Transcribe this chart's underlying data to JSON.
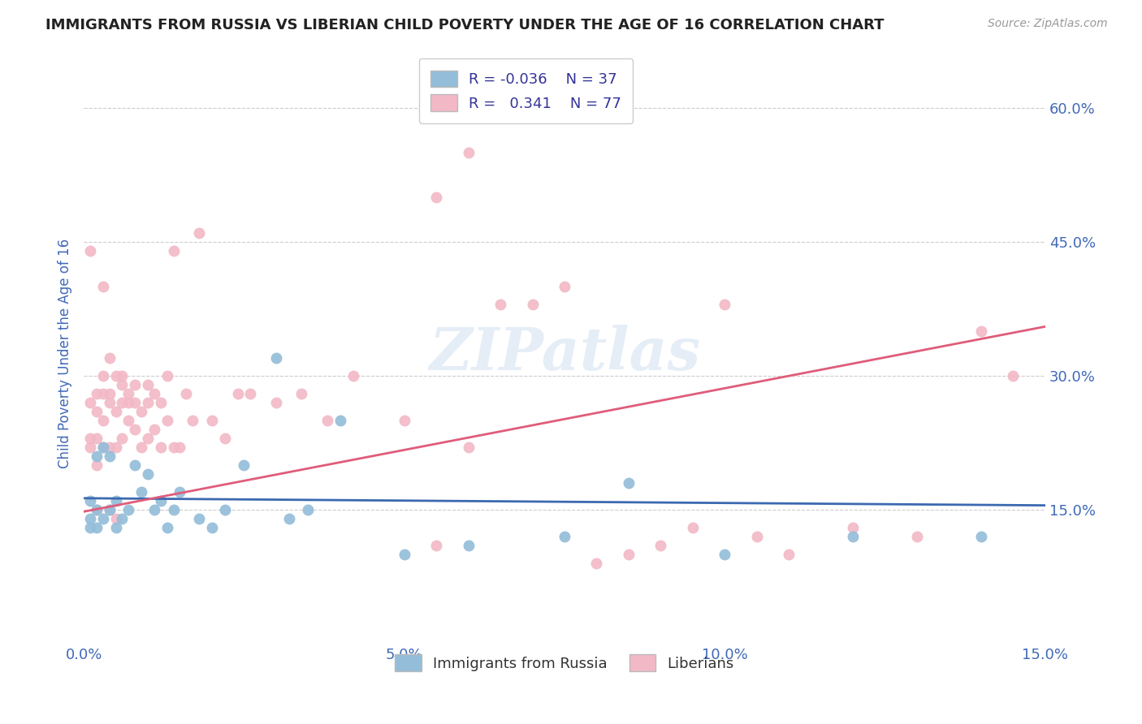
{
  "title": "IMMIGRANTS FROM RUSSIA VS LIBERIAN CHILD POVERTY UNDER THE AGE OF 16 CORRELATION CHART",
  "source": "Source: ZipAtlas.com",
  "ylabel": "Child Poverty Under the Age of 16",
  "xlim": [
    0.0,
    0.15
  ],
  "ylim": [
    0.0,
    0.65
  ],
  "yticks": [
    0.15,
    0.3,
    0.45,
    0.6
  ],
  "xticks": [
    0.0,
    0.05,
    0.1,
    0.15
  ],
  "xtick_labels": [
    "0.0%",
    "5.0%",
    "10.0%",
    "15.0%"
  ],
  "ytick_labels": [
    "15.0%",
    "30.0%",
    "45.0%",
    "60.0%"
  ],
  "blue_color": "#93BDD9",
  "pink_color": "#F2B8C6",
  "blue_line_color": "#3B69B0",
  "pink_line_color": "#E05C7A",
  "legend_blue_label": "Immigrants from Russia",
  "legend_pink_label": "Liberians",
  "R_blue": -0.036,
  "N_blue": 37,
  "R_pink": 0.341,
  "N_pink": 77,
  "watermark": "ZIPatlas",
  "title_color": "#222222",
  "axis_label_color": "#4169B8",
  "tick_color": "#4169B8",
  "blue_scatter_x": [
    0.001,
    0.001,
    0.001,
    0.002,
    0.002,
    0.002,
    0.003,
    0.003,
    0.004,
    0.004,
    0.005,
    0.005,
    0.006,
    0.007,
    0.008,
    0.009,
    0.01,
    0.011,
    0.012,
    0.013,
    0.014,
    0.015,
    0.018,
    0.02,
    0.022,
    0.025,
    0.03,
    0.032,
    0.035,
    0.04,
    0.05,
    0.06,
    0.075,
    0.085,
    0.1,
    0.12,
    0.14
  ],
  "blue_scatter_y": [
    0.13,
    0.14,
    0.16,
    0.13,
    0.15,
    0.21,
    0.14,
    0.22,
    0.15,
    0.21,
    0.13,
    0.16,
    0.14,
    0.15,
    0.2,
    0.17,
    0.19,
    0.15,
    0.16,
    0.13,
    0.15,
    0.17,
    0.14,
    0.13,
    0.15,
    0.2,
    0.32,
    0.14,
    0.15,
    0.25,
    0.1,
    0.11,
    0.12,
    0.18,
    0.1,
    0.12,
    0.12
  ],
  "pink_scatter_x": [
    0.001,
    0.001,
    0.001,
    0.001,
    0.002,
    0.002,
    0.002,
    0.002,
    0.002,
    0.003,
    0.003,
    0.003,
    0.003,
    0.003,
    0.004,
    0.004,
    0.004,
    0.004,
    0.004,
    0.005,
    0.005,
    0.005,
    0.005,
    0.006,
    0.006,
    0.006,
    0.006,
    0.007,
    0.007,
    0.007,
    0.008,
    0.008,
    0.008,
    0.009,
    0.009,
    0.01,
    0.01,
    0.01,
    0.011,
    0.011,
    0.012,
    0.012,
    0.013,
    0.013,
    0.014,
    0.014,
    0.015,
    0.016,
    0.017,
    0.018,
    0.02,
    0.022,
    0.024,
    0.026,
    0.03,
    0.034,
    0.038,
    0.042,
    0.05,
    0.055,
    0.06,
    0.07,
    0.08,
    0.09,
    0.1,
    0.11,
    0.12,
    0.13,
    0.14,
    0.145,
    0.06,
    0.065,
    0.055,
    0.075,
    0.085,
    0.095,
    0.105
  ],
  "pink_scatter_y": [
    0.22,
    0.23,
    0.27,
    0.44,
    0.2,
    0.23,
    0.26,
    0.28,
    0.15,
    0.22,
    0.25,
    0.28,
    0.3,
    0.4,
    0.15,
    0.22,
    0.27,
    0.28,
    0.32,
    0.14,
    0.22,
    0.26,
    0.3,
    0.23,
    0.27,
    0.29,
    0.3,
    0.25,
    0.27,
    0.28,
    0.24,
    0.27,
    0.29,
    0.22,
    0.26,
    0.23,
    0.27,
    0.29,
    0.24,
    0.28,
    0.22,
    0.27,
    0.25,
    0.3,
    0.22,
    0.44,
    0.22,
    0.28,
    0.25,
    0.46,
    0.25,
    0.23,
    0.28,
    0.28,
    0.27,
    0.28,
    0.25,
    0.3,
    0.25,
    0.11,
    0.22,
    0.38,
    0.09,
    0.11,
    0.38,
    0.1,
    0.13,
    0.12,
    0.35,
    0.3,
    0.55,
    0.38,
    0.5,
    0.4,
    0.1,
    0.13,
    0.12
  ],
  "blue_trend_x0": 0.0,
  "blue_trend_y0": 0.163,
  "blue_trend_x1": 0.15,
  "blue_trend_y1": 0.155,
  "pink_trend_x0": 0.0,
  "pink_trend_y0": 0.148,
  "pink_trend_x1": 0.15,
  "pink_trend_y1": 0.355
}
